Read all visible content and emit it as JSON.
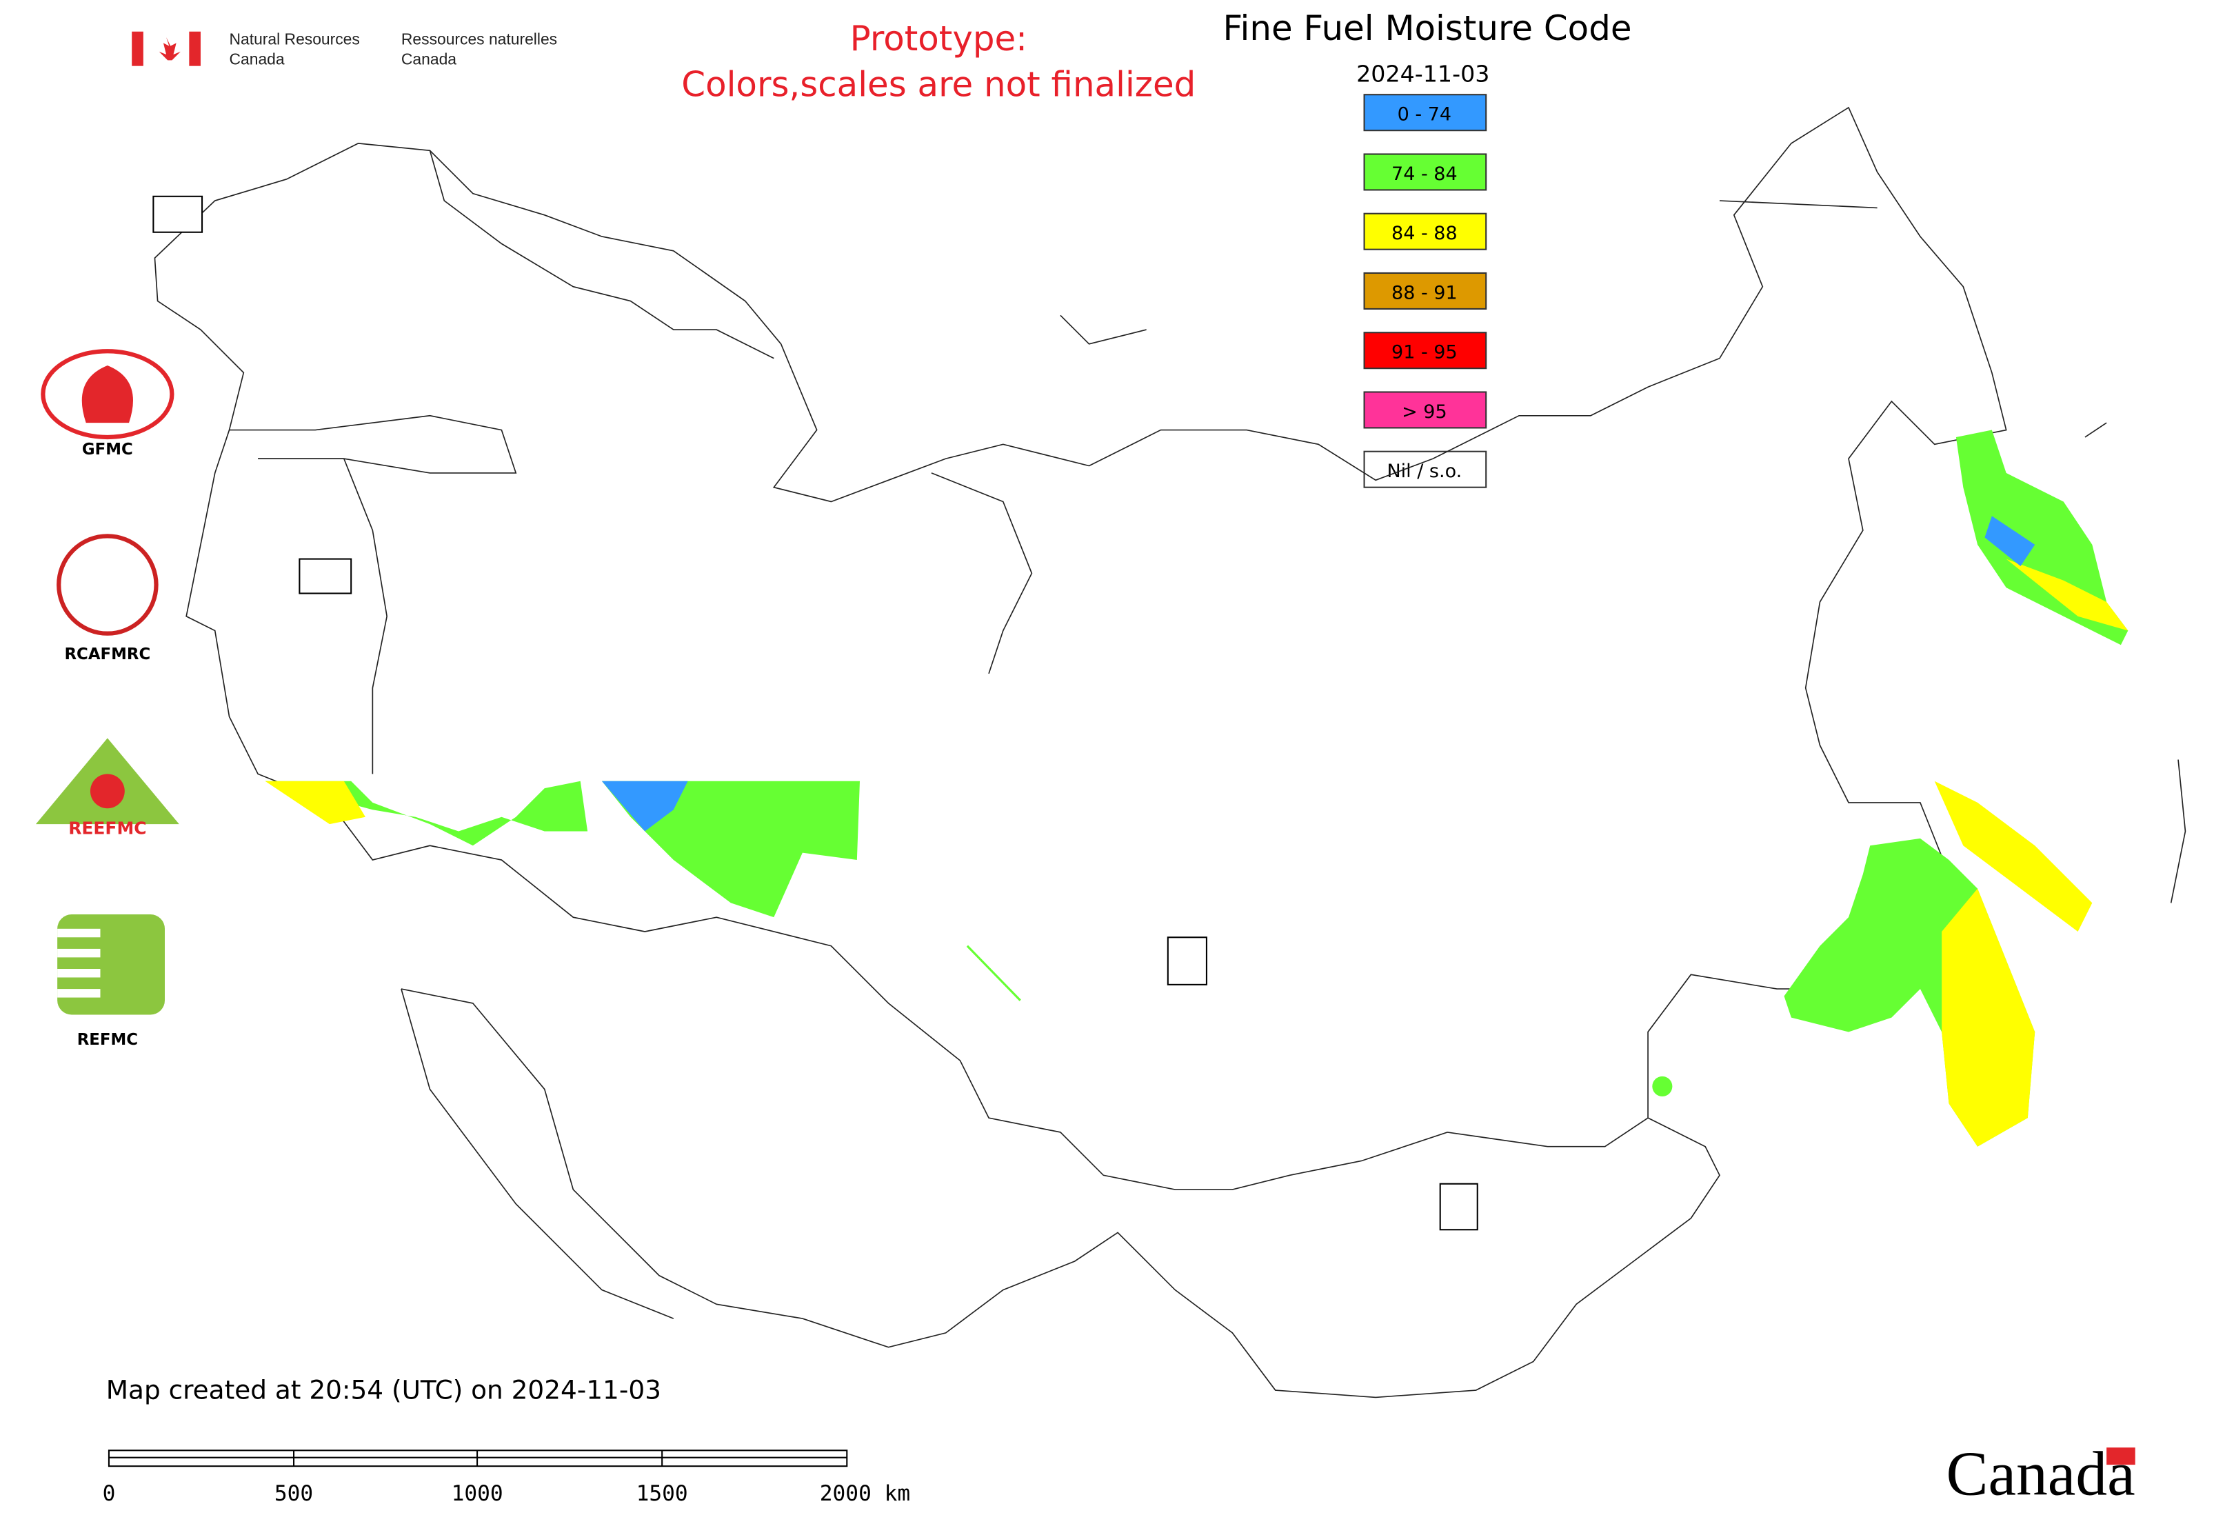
{
  "header": {
    "department_en": [
      "Natural Resources",
      "Canada"
    ],
    "department_fr": [
      "Ressources naturelles",
      "Canada"
    ]
  },
  "notice": {
    "line1": "Prototype:",
    "line2": "Colors,scales are not finalized"
  },
  "map": {
    "title": "Fine Fuel Moisture Code",
    "date": "2024-11-03",
    "legend": [
      {
        "label": "0 - 74",
        "color": "#3399ff"
      },
      {
        "label": "74 - 84",
        "color": "#66ff33"
      },
      {
        "label": "84 - 88",
        "color": "#ffff00"
      },
      {
        "label": "88 - 91",
        "color": "#dd9900"
      },
      {
        "label": "91 - 95",
        "color": "#ff0000"
      },
      {
        "label": "> 95",
        "color": "#ff3399"
      },
      {
        "label": "Nil / s.o.",
        "color": "#ffffff"
      }
    ]
  },
  "partners": [
    "GFMC",
    "RCAFMRC",
    "REEFMC",
    "REFMC"
  ],
  "footer": {
    "created": "Map created at 20:54 (UTC) on 2024-11-03",
    "scale_labels": [
      "0",
      "500",
      "1000",
      "1500",
      "2000 km"
    ],
    "wordmark": "Canada"
  }
}
